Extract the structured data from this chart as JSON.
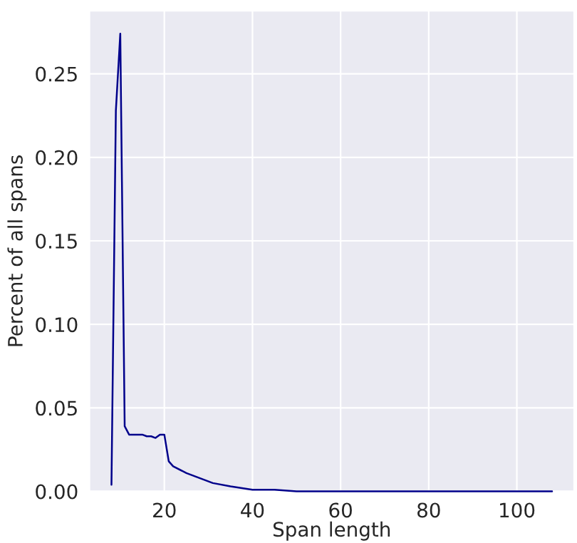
{
  "chart_data": {
    "type": "line",
    "xlabel": "Span length",
    "ylabel": "Percent of all spans",
    "x": [
      8,
      9,
      10,
      11,
      12,
      13,
      14,
      15,
      16,
      17,
      18,
      19,
      20,
      21,
      22,
      25,
      28,
      31,
      35,
      40,
      45,
      50,
      60,
      70,
      80,
      90,
      100,
      108
    ],
    "values": [
      0.004,
      0.228,
      0.274,
      0.039,
      0.034,
      0.034,
      0.034,
      0.034,
      0.033,
      0.033,
      0.032,
      0.034,
      0.034,
      0.018,
      0.015,
      0.011,
      0.008,
      0.005,
      0.003,
      0.001,
      0.001,
      0.0,
      0.0,
      0.0,
      0.0,
      0.0,
      0.0,
      0.0
    ],
    "color": "#00008b",
    "xlim": [
      3,
      113
    ],
    "ylim": [
      0,
      0.2877
    ],
    "xticks": [
      20,
      40,
      60,
      80,
      100
    ],
    "yticks": [
      {
        "value": 0,
        "label": "0.00"
      },
      {
        "value": 0.05,
        "label": "0.05"
      },
      {
        "value": 0.1,
        "label": "0.10"
      },
      {
        "value": 0.15,
        "label": "0.15"
      },
      {
        "value": 0.2,
        "label": "0.20"
      },
      {
        "value": 0.25,
        "label": "0.25"
      }
    ],
    "grid": true
  }
}
